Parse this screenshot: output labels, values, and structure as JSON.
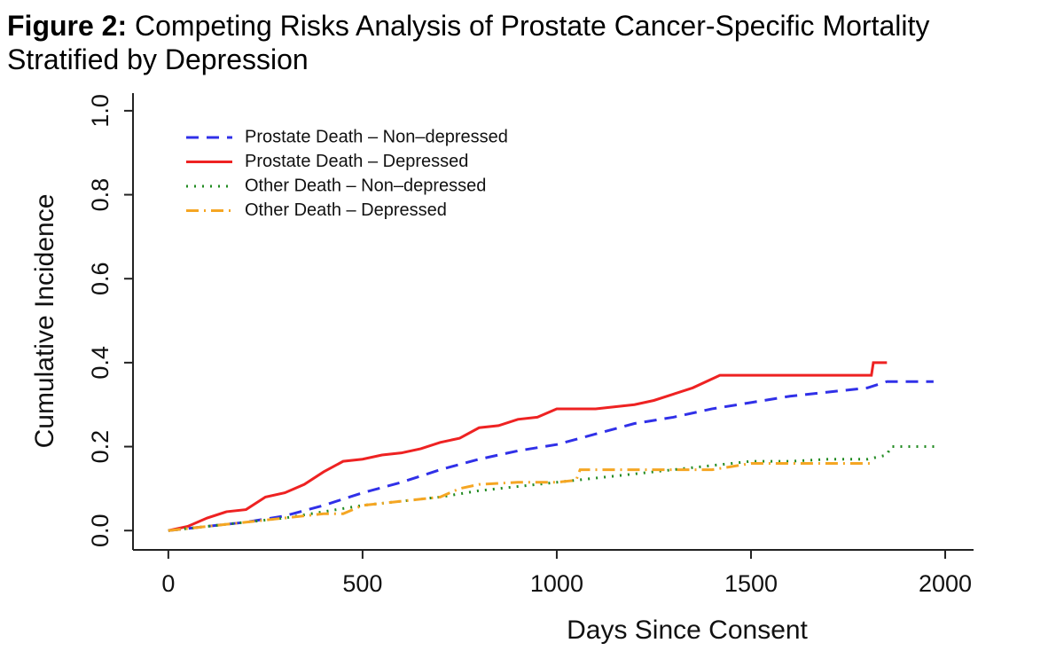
{
  "chart_data": {
    "type": "line",
    "title_label": "Figure 2:",
    "title": "Competing Risks Analysis of Prostate Cancer-Specific Mortality Stratified by Depression",
    "x_label": "Days Since Consent",
    "y_label": "Cumulative Incidence",
    "xlim": [
      -91,
      2073
    ],
    "ylim": [
      -0.046,
      1.042
    ],
    "xticks": [
      0,
      500,
      1000,
      1500,
      2000
    ],
    "yticks": [
      {
        "value": 0,
        "label": "0.0"
      },
      {
        "value": 0.2,
        "label": "0.2"
      },
      {
        "value": 0.4,
        "label": "0.4"
      },
      {
        "value": 0.6,
        "label": "0.6"
      },
      {
        "value": 0.8,
        "label": "0.8"
      },
      {
        "value": 1,
        "label": "1.0"
      }
    ],
    "legend": "top-left",
    "series": [
      {
        "name": "Prostate Death – Non–depressed",
        "color": "#3030e8",
        "style": "dashed",
        "x": [
          0,
          100,
          200,
          300,
          400,
          500,
          600,
          700,
          800,
          900,
          1000,
          1100,
          1200,
          1300,
          1400,
          1500,
          1600,
          1700,
          1800,
          1850,
          1970
        ],
        "values": [
          0,
          0.01,
          0.02,
          0.035,
          0.06,
          0.09,
          0.115,
          0.145,
          0.17,
          0.19,
          0.205,
          0.23,
          0.255,
          0.27,
          0.29,
          0.305,
          0.32,
          0.33,
          0.34,
          0.355,
          0.355
        ]
      },
      {
        "name": "Prostate Death – Depressed",
        "color": "#ee2222",
        "style": "solid",
        "x": [
          0,
          50,
          100,
          150,
          200,
          250,
          300,
          350,
          400,
          450,
          500,
          550,
          600,
          650,
          700,
          750,
          800,
          850,
          900,
          950,
          1000,
          1100,
          1200,
          1250,
          1300,
          1350,
          1420,
          1500,
          1600,
          1700,
          1810,
          1815,
          1850
        ],
        "values": [
          0,
          0.01,
          0.03,
          0.045,
          0.05,
          0.08,
          0.09,
          0.11,
          0.14,
          0.165,
          0.17,
          0.18,
          0.185,
          0.195,
          0.21,
          0.22,
          0.245,
          0.25,
          0.265,
          0.27,
          0.29,
          0.29,
          0.3,
          0.31,
          0.325,
          0.34,
          0.37,
          0.37,
          0.37,
          0.37,
          0.37,
          0.4,
          0.4
        ]
      },
      {
        "name": "Other Death – Non–depressed",
        "color": "#228b22",
        "style": "dotted",
        "x": [
          0,
          100,
          200,
          300,
          400,
          500,
          600,
          700,
          800,
          900,
          1000,
          1100,
          1200,
          1300,
          1400,
          1500,
          1600,
          1700,
          1800,
          1850,
          1860,
          1980
        ],
        "values": [
          0,
          0.01,
          0.02,
          0.03,
          0.045,
          0.06,
          0.07,
          0.08,
          0.095,
          0.105,
          0.115,
          0.125,
          0.135,
          0.145,
          0.155,
          0.165,
          0.165,
          0.17,
          0.17,
          0.18,
          0.2,
          0.2
        ]
      },
      {
        "name": "Other Death – Depressed",
        "color": "#f5a623",
        "style": "dotdash",
        "x": [
          0,
          100,
          200,
          300,
          400,
          450,
          500,
          600,
          700,
          750,
          800,
          900,
          1000,
          1050,
          1060,
          1200,
          1400,
          1500,
          1600,
          1700,
          1810
        ],
        "values": [
          0,
          0.01,
          0.02,
          0.03,
          0.04,
          0.04,
          0.06,
          0.07,
          0.08,
          0.1,
          0.11,
          0.115,
          0.115,
          0.12,
          0.145,
          0.145,
          0.145,
          0.16,
          0.16,
          0.16,
          0.16
        ]
      }
    ]
  }
}
